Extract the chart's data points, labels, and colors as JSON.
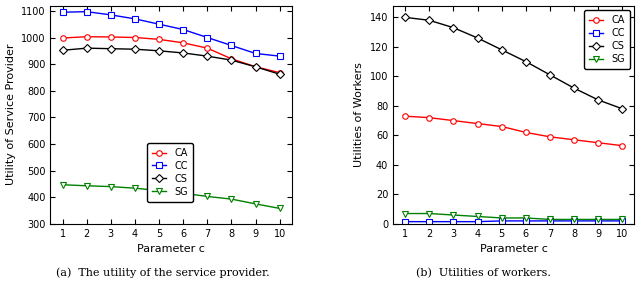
{
  "x": [
    1,
    2,
    3,
    4,
    5,
    6,
    7,
    8,
    9,
    10
  ],
  "left_CA": [
    998,
    1003,
    1002,
    1000,
    993,
    980,
    960,
    920,
    890,
    868
  ],
  "left_CC": [
    1095,
    1097,
    1085,
    1070,
    1050,
    1030,
    1000,
    970,
    940,
    930
  ],
  "left_CS": [
    952,
    960,
    958,
    956,
    950,
    942,
    930,
    915,
    890,
    862
  ],
  "left_SG": [
    447,
    443,
    440,
    434,
    425,
    415,
    403,
    393,
    375,
    358
  ],
  "right_CA": [
    73,
    72,
    70,
    68,
    66,
    62,
    59,
    57,
    55,
    53
  ],
  "right_CC": [
    1.5,
    1.5,
    1.5,
    1.5,
    2,
    2,
    2,
    2,
    2,
    2
  ],
  "right_CS": [
    140,
    138,
    133,
    126,
    118,
    110,
    101,
    92,
    84,
    78
  ],
  "right_SG": [
    7,
    7,
    6,
    5,
    4,
    4,
    3,
    3,
    3,
    3
  ],
  "left_ylabel": "Utility of Service Provider",
  "right_ylabel": "Utilities of Workers",
  "xlabel": "Parameter c",
  "left_ylim": [
    300,
    1120
  ],
  "right_ylim": [
    0,
    148
  ],
  "left_yticks": [
    300,
    400,
    500,
    600,
    700,
    800,
    900,
    1000,
    1100
  ],
  "right_yticks": [
    0,
    20,
    40,
    60,
    80,
    100,
    120,
    140
  ],
  "xticks": [
    1,
    2,
    3,
    4,
    5,
    6,
    7,
    8,
    9,
    10
  ],
  "caption_a": "(a)  The utility of the service provider.",
  "caption_b": "(b)  Utilities of workers.",
  "colors": {
    "CA": "red",
    "CC": "blue",
    "CS": "black",
    "SG": "green"
  },
  "markers": {
    "CA": "o",
    "CC": "s",
    "CS": "D",
    "SG": "v"
  }
}
